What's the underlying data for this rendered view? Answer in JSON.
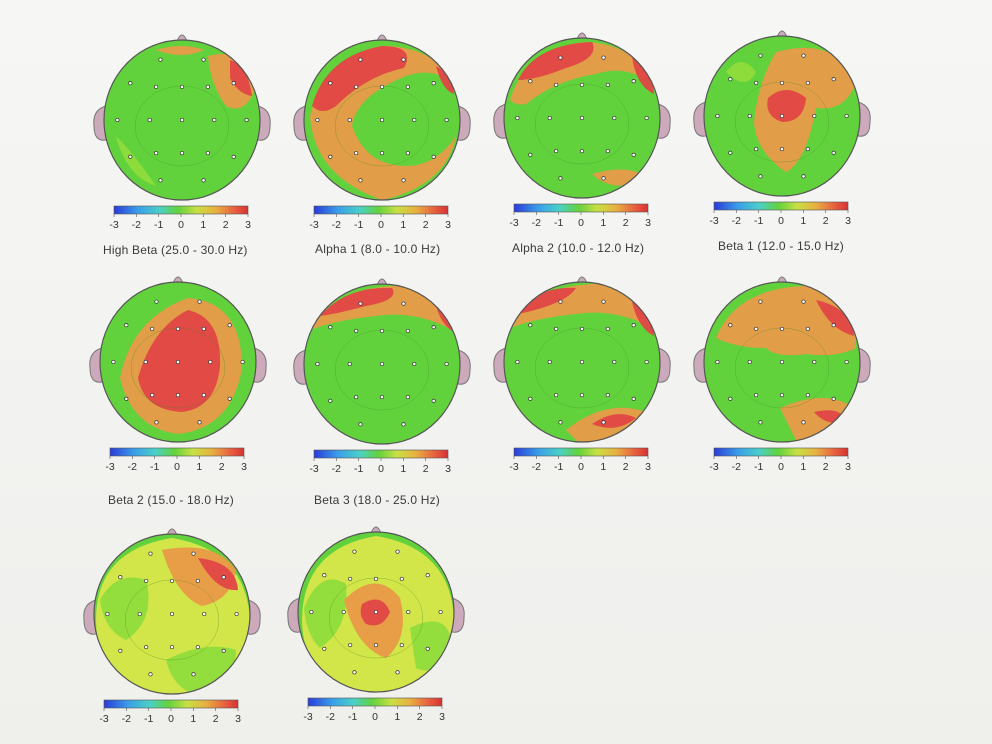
{
  "scale_ticks": [
    "-3",
    "-2",
    "-1",
    "0",
    "1",
    "2",
    "3"
  ],
  "colors": {
    "green": "#62d23c",
    "light_green": "#8fdc3c",
    "yellow": "#d8e64a",
    "orange": "#e89a48",
    "red": "#e04646",
    "dark_red": "#d83232",
    "head": "#ccaabb"
  },
  "maps": [
    {
      "id": "map1",
      "caption": "High Beta (25.0 - 30.0 Hz)"
    },
    {
      "id": "map2",
      "caption": "Alpha 1 (8.0 - 10.0 Hz)"
    },
    {
      "id": "map3",
      "caption": "Alpha 2 (10.0 - 12.0 Hz)"
    },
    {
      "id": "map4",
      "caption": "Beta 1 (12.0 - 15.0 Hz)"
    },
    {
      "id": "map5",
      "caption": "Beta 2 (15.0 - 18.0 Hz)"
    },
    {
      "id": "map6",
      "caption": "Beta 3 (18.0 - 25.0 Hz)"
    },
    {
      "id": "map7",
      "caption": ""
    },
    {
      "id": "map8",
      "caption": ""
    },
    {
      "id": "map9",
      "caption": ""
    },
    {
      "id": "map10",
      "caption": ""
    }
  ]
}
